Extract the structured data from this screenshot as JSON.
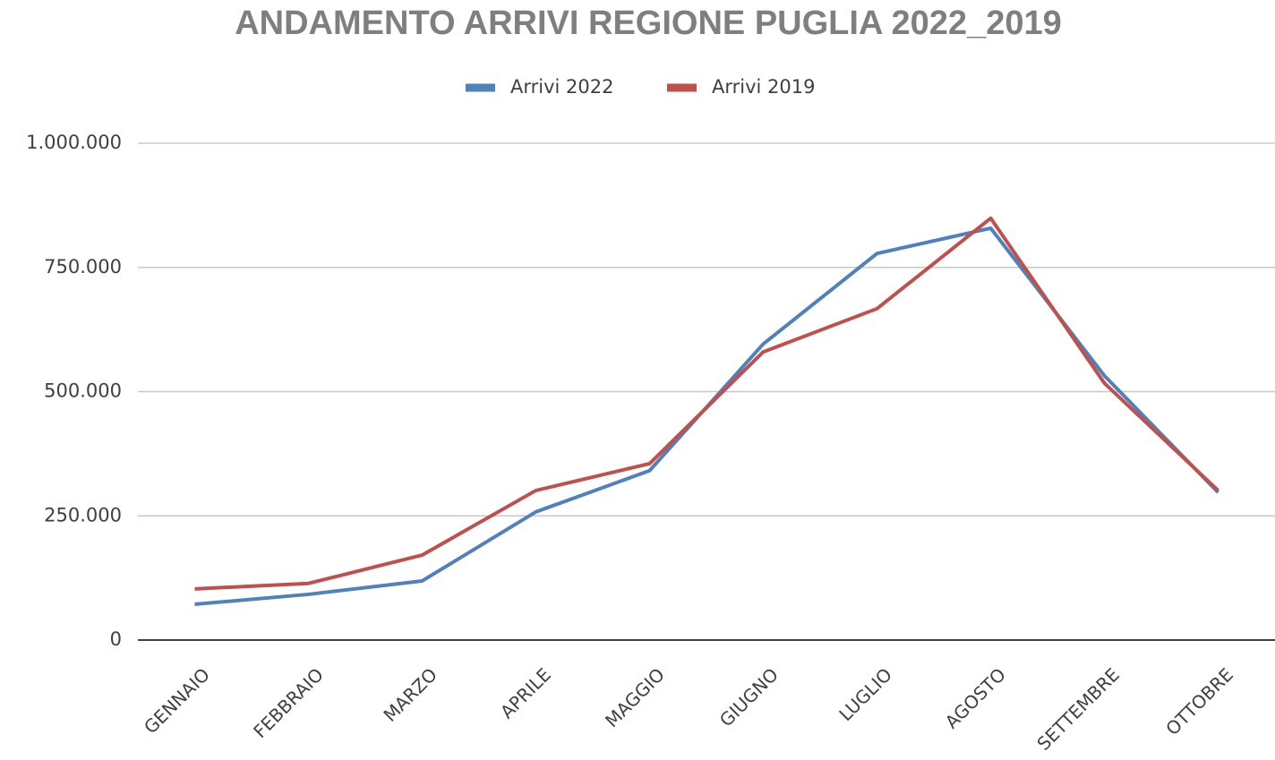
{
  "chart_data": {
    "type": "line",
    "title": "ANDAMENTO ARRIVI REGIONE PUGLIA  2022_2019",
    "categories": [
      "GENNAIO",
      "FEBBRAIO",
      "MARZO",
      "APRILE",
      "MAGGIO",
      "GIUGNO",
      "LUGLIO",
      "AGOSTO",
      "SETTEMBRE",
      "OTTOBRE"
    ],
    "series": [
      {
        "name": "Arrivi 2022",
        "color": "#4f81bd",
        "values": [
          72000,
          92000,
          119000,
          258000,
          341000,
          596000,
          778000,
          829000,
          532000,
          297000
        ]
      },
      {
        "name": "Arrivi 2019",
        "color": "#c0504d",
        "values": [
          103000,
          114000,
          171000,
          301000,
          355000,
          580000,
          667000,
          849000,
          517000,
          301000
        ]
      }
    ],
    "ylim": [
      0,
      1000000
    ],
    "yticks": [
      0,
      {
        "value": 250000,
        "label": "250.000"
      },
      {
        "value": 500000,
        "label": "500.000"
      },
      {
        "value": 750000,
        "label": "750.000"
      },
      {
        "value": 1000000,
        "label": "1.000.000"
      }
    ],
    "grid": true,
    "legend": "top"
  }
}
